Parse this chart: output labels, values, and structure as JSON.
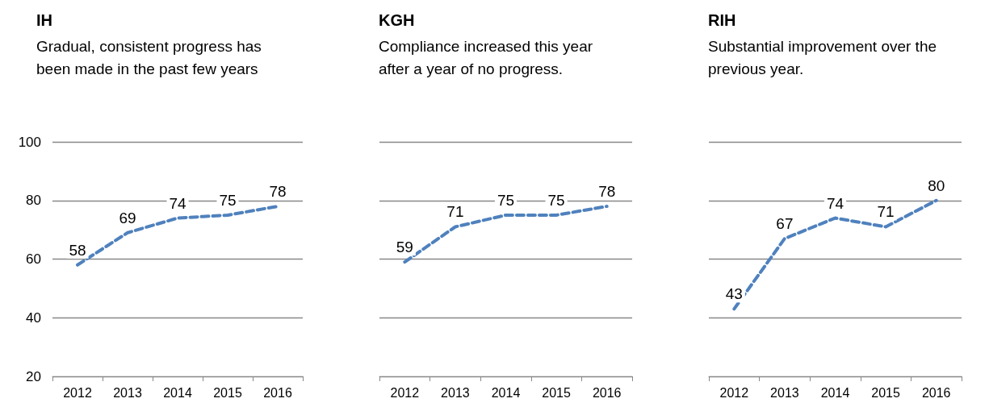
{
  "chart_data": [
    {
      "type": "line",
      "title": "IH",
      "subtitle": "Gradual, consistent progress has been made in the past few years",
      "categories": [
        "2012",
        "2013",
        "2014",
        "2015",
        "2016"
      ],
      "series": [
        {
          "color": "#4f81bd",
          "values": [
            58,
            69,
            74,
            75,
            78
          ]
        }
      ],
      "ylim": [
        20,
        100
      ],
      "yticks": [
        20,
        40,
        60,
        80,
        100
      ],
      "grid": "y",
      "data_labels": true,
      "marker": "none",
      "line_style": "dashed"
    },
    {
      "type": "line",
      "title": "KGH",
      "subtitle": "Compliance increased this year after a year of no progress.",
      "categories": [
        "2012",
        "2013",
        "2014",
        "2015",
        "2016"
      ],
      "series": [
        {
          "color": "#4f81bd",
          "values": [
            59,
            71,
            75,
            75,
            78
          ]
        }
      ],
      "ylim": [
        20,
        100
      ],
      "yticks": [
        20,
        40,
        60,
        80,
        100
      ],
      "grid": "y",
      "data_labels": true,
      "marker": "none",
      "line_style": "dashed",
      "tick_labels": "x"
    },
    {
      "type": "line",
      "title": "RIH",
      "subtitle": "Substantial improvement over the previous year.",
      "categories": [
        "2012",
        "2013",
        "2014",
        "2015",
        "2016"
      ],
      "series": [
        {
          "color": "#4f81bd",
          "values": [
            43,
            67,
            74,
            71,
            80
          ]
        }
      ],
      "ylim": [
        20,
        100
      ],
      "yticks": [
        20,
        40,
        60,
        80,
        100
      ],
      "grid": "y",
      "data_labels": true,
      "marker": "none",
      "line_style": "dashed",
      "tick_labels": "x"
    }
  ]
}
